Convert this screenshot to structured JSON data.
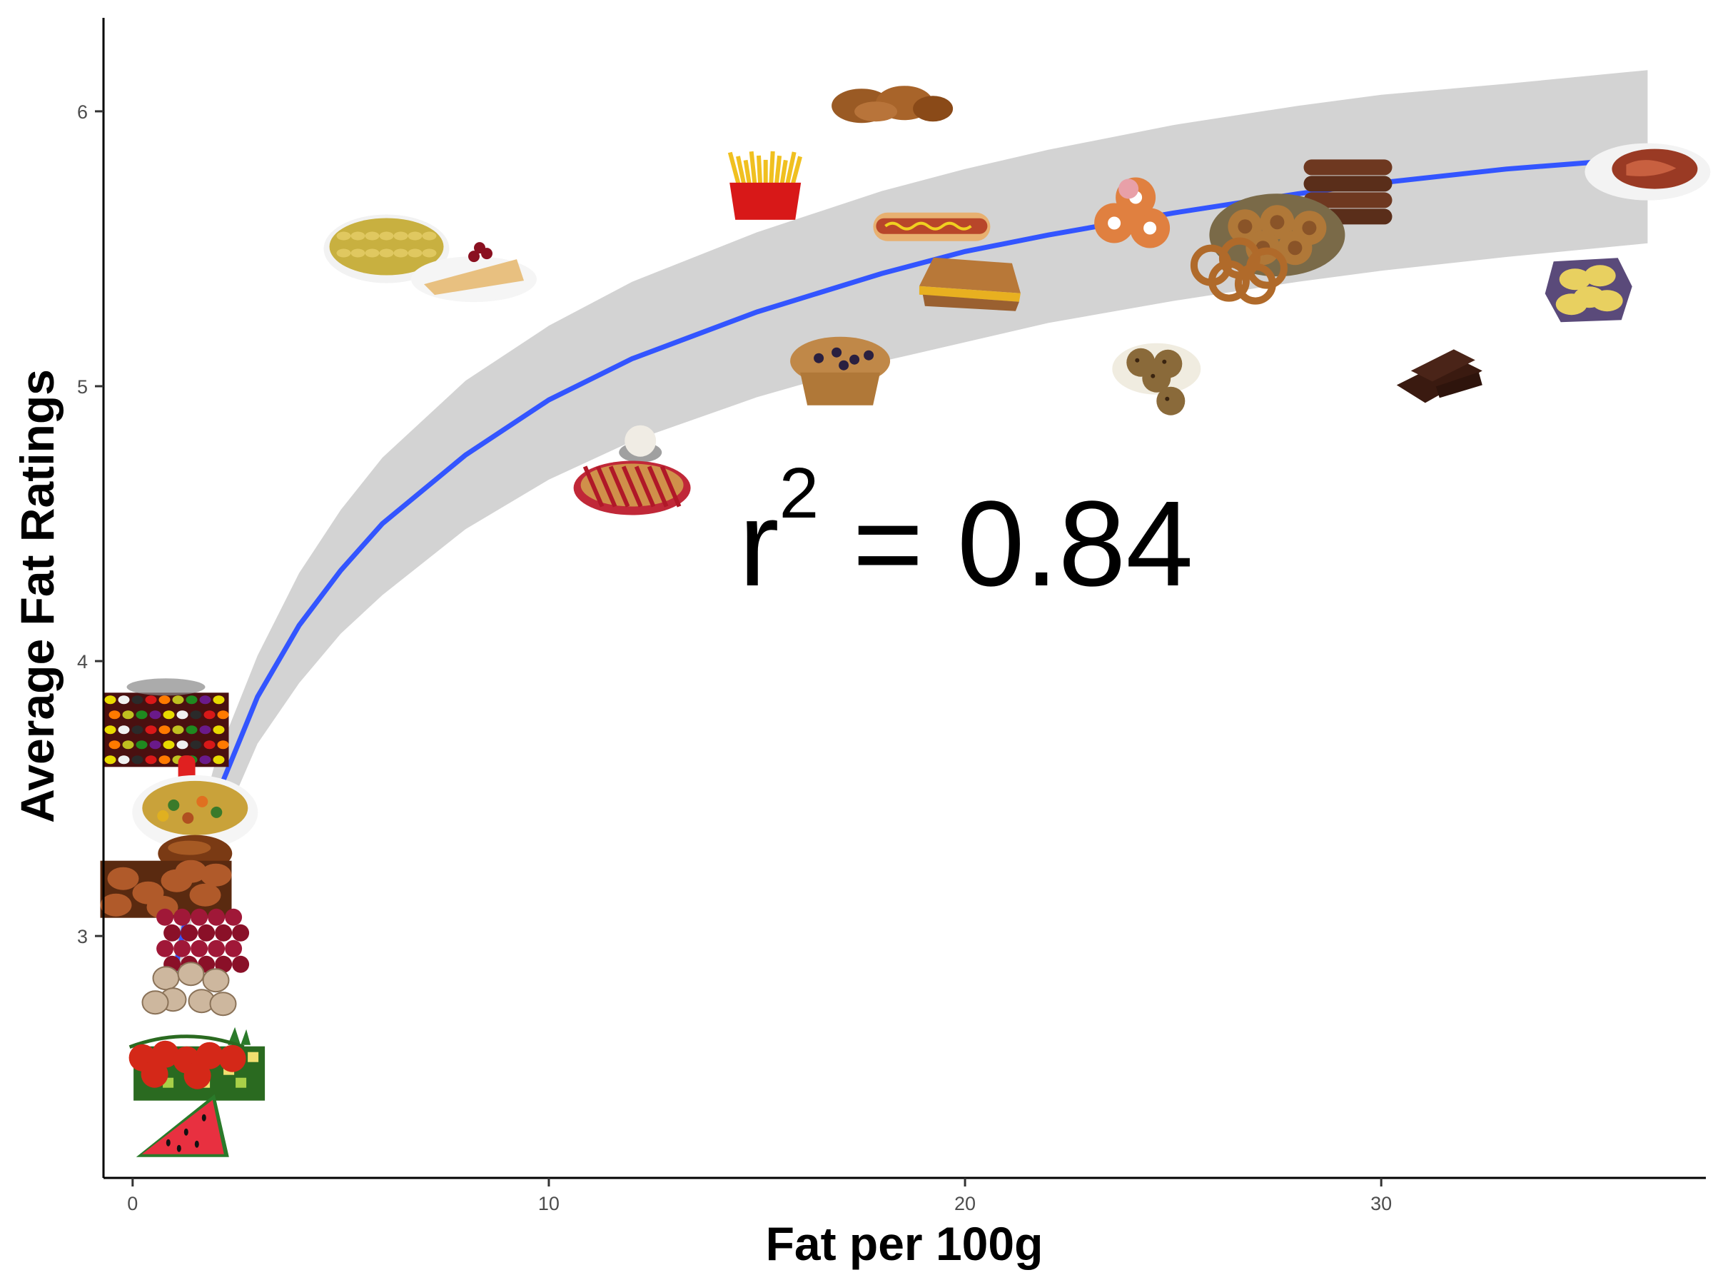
{
  "chart_data": {
    "type": "scatter",
    "xlabel": "Fat per 100g",
    "ylabel": "Average Fat Ratings",
    "xlim": [
      -0.7,
      37.8
    ],
    "ylim": [
      2.12,
      6.34
    ],
    "xticks": [
      0,
      10,
      20,
      30
    ],
    "yticks": [
      3,
      4,
      5,
      6
    ],
    "grid": false,
    "annotation": {
      "base": "r",
      "superscript": "2",
      "rest": " = 0.84"
    },
    "fit": {
      "method": "log",
      "color": "#3355ff",
      "band_color": "#d3d3d3",
      "x": [
        1,
        1.5,
        2,
        3,
        4,
        5,
        6,
        8,
        10,
        12,
        15,
        18,
        20,
        22,
        25,
        28,
        30,
        33,
        36.4
      ],
      "y": [
        2.86,
        3.23,
        3.5,
        3.87,
        4.13,
        4.33,
        4.5,
        4.75,
        4.95,
        5.1,
        5.27,
        5.41,
        5.49,
        5.55,
        5.63,
        5.7,
        5.74,
        5.79,
        5.83
      ],
      "lower": [
        2.8,
        3.1,
        3.35,
        3.7,
        3.92,
        4.1,
        4.24,
        4.48,
        4.66,
        4.8,
        4.96,
        5.09,
        5.16,
        5.23,
        5.31,
        5.38,
        5.42,
        5.47,
        5.52
      ],
      "upper": [
        2.92,
        3.36,
        3.64,
        4.02,
        4.32,
        4.55,
        4.74,
        5.02,
        5.22,
        5.38,
        5.56,
        5.71,
        5.79,
        5.86,
        5.95,
        6.02,
        6.06,
        6.1,
        6.15
      ]
    },
    "points": [
      {
        "icon": "jelly-beans",
        "x": 0.8,
        "y": 3.75
      },
      {
        "icon": "popsicle",
        "x": 1.3,
        "y": 3.6
      },
      {
        "icon": "soup",
        "x": 1.5,
        "y": 3.45
      },
      {
        "icon": "bread-roll",
        "x": 1.5,
        "y": 3.3
      },
      {
        "icon": "potatoes",
        "x": 0.8,
        "y": 3.17
      },
      {
        "icon": "raspberries",
        "x": 1.6,
        "y": 2.98
      },
      {
        "icon": "mushrooms",
        "x": 1.4,
        "y": 2.8
      },
      {
        "icon": "pineapple-salad",
        "x": 1.6,
        "y": 2.5
      },
      {
        "icon": "tomatoes",
        "x": 1.3,
        "y": 2.57
      },
      {
        "icon": "watermelon",
        "x": 1.2,
        "y": 2.3
      },
      {
        "icon": "mac-and-cheese",
        "x": 6.1,
        "y": 5.5
      },
      {
        "icon": "crepes",
        "x": 8.2,
        "y": 5.41
      },
      {
        "icon": "fried-chicken",
        "x": 18.2,
        "y": 6.02
      },
      {
        "icon": "french-fries",
        "x": 15.2,
        "y": 5.73
      },
      {
        "icon": "donuts",
        "x": 24.1,
        "y": 5.64
      },
      {
        "icon": "sausages",
        "x": 29.2,
        "y": 5.7
      },
      {
        "icon": "bacon",
        "x": 36.4,
        "y": 5.78
      },
      {
        "icon": "hot-dog",
        "x": 19.2,
        "y": 5.58
      },
      {
        "icon": "cinnamon-rolls",
        "x": 27.5,
        "y": 5.55
      },
      {
        "icon": "onion-rings",
        "x": 26.6,
        "y": 5.44
      },
      {
        "icon": "grilled-cheese",
        "x": 20.1,
        "y": 5.39
      },
      {
        "icon": "potato-chips",
        "x": 35,
        "y": 5.35
      },
      {
        "icon": "blueberry-muffin",
        "x": 17,
        "y": 5.05
      },
      {
        "icon": "cookies",
        "x": 24.6,
        "y": 5.05
      },
      {
        "icon": "chocolate",
        "x": 31.4,
        "y": 5.03
      },
      {
        "icon": "ice-cream",
        "x": 12.2,
        "y": 4.78
      },
      {
        "icon": "cherry-pie",
        "x": 12,
        "y": 4.63
      }
    ]
  }
}
